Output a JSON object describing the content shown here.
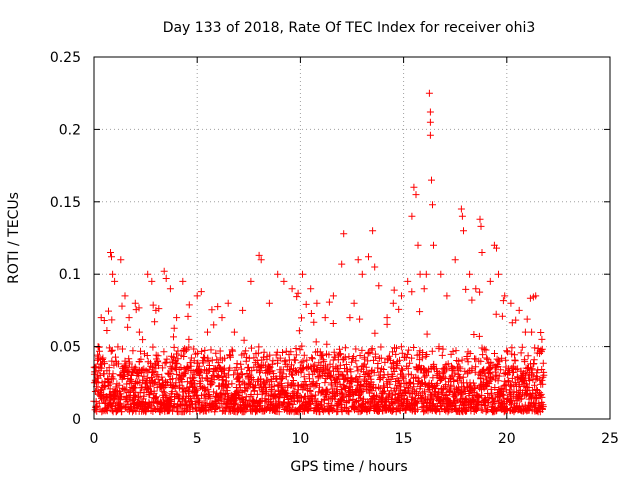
{
  "chart_data": {
    "type": "scatter",
    "title": "Day 133 of 2018, Rate Of TEC Index for receiver ohi3",
    "xlabel": "GPS time / hours",
    "ylabel": "ROTI / TECUs",
    "xlim": [
      0,
      25
    ],
    "ylim": [
      0,
      0.25
    ],
    "x_ticks": [
      0,
      5,
      10,
      15,
      20,
      25
    ],
    "x_tick_labels": [
      "0",
      "5",
      "10",
      "15",
      "20",
      "25"
    ],
    "y_ticks": [
      0,
      0.05,
      0.1,
      0.15,
      0.2,
      0.25
    ],
    "y_tick_labels": [
      "0",
      "0.05",
      "0.1",
      "0.15",
      "0.2",
      "0.25"
    ],
    "grid": true,
    "marker": "+",
    "series": [
      {
        "name": "ROTI",
        "color": "#ff0000",
        "points": [
          [
            0.1,
            0.012
          ],
          [
            0.2,
            0.05
          ],
          [
            0.35,
            0.07
          ],
          [
            0.5,
            0.068
          ],
          [
            0.8,
            0.115
          ],
          [
            0.85,
            0.112
          ],
          [
            0.9,
            0.1
          ],
          [
            1.0,
            0.095
          ],
          [
            1.3,
            0.11
          ],
          [
            1.5,
            0.085
          ],
          [
            1.7,
            0.07
          ],
          [
            2.0,
            0.08
          ],
          [
            2.2,
            0.06
          ],
          [
            2.6,
            0.1
          ],
          [
            2.8,
            0.095
          ],
          [
            3.0,
            0.075
          ],
          [
            3.4,
            0.102
          ],
          [
            3.5,
            0.097
          ],
          [
            3.7,
            0.09
          ],
          [
            4.0,
            0.07
          ],
          [
            4.3,
            0.095
          ],
          [
            4.6,
            0.055
          ],
          [
            5.0,
            0.085
          ],
          [
            5.2,
            0.088
          ],
          [
            5.5,
            0.06
          ],
          [
            5.8,
            0.065
          ],
          [
            6.2,
            0.07
          ],
          [
            6.5,
            0.08
          ],
          [
            6.8,
            0.06
          ],
          [
            7.2,
            0.075
          ],
          [
            7.6,
            0.095
          ],
          [
            8.0,
            0.113
          ],
          [
            8.1,
            0.11
          ],
          [
            8.5,
            0.08
          ],
          [
            8.9,
            0.1
          ],
          [
            9.2,
            0.095
          ],
          [
            9.6,
            0.09
          ],
          [
            10.1,
            0.1
          ],
          [
            10.5,
            0.09
          ],
          [
            10.8,
            0.08
          ],
          [
            11.2,
            0.07
          ],
          [
            11.6,
            0.085
          ],
          [
            12.0,
            0.107
          ],
          [
            12.1,
            0.128
          ],
          [
            12.4,
            0.07
          ],
          [
            12.6,
            0.08
          ],
          [
            12.8,
            0.11
          ],
          [
            13.0,
            0.1
          ],
          [
            13.3,
            0.112
          ],
          [
            13.5,
            0.13
          ],
          [
            13.6,
            0.105
          ],
          [
            13.8,
            0.092
          ],
          [
            14.2,
            0.07
          ],
          [
            14.5,
            0.08
          ],
          [
            14.9,
            0.085
          ],
          [
            15.2,
            0.095
          ],
          [
            15.4,
            0.14
          ],
          [
            15.5,
            0.16
          ],
          [
            15.6,
            0.155
          ],
          [
            15.7,
            0.12
          ],
          [
            15.8,
            0.1
          ],
          [
            16.0,
            0.09
          ],
          [
            16.1,
            0.1
          ],
          [
            16.25,
            0.225
          ],
          [
            16.3,
            0.212
          ],
          [
            16.3,
            0.205
          ],
          [
            16.3,
            0.196
          ],
          [
            16.35,
            0.165
          ],
          [
            16.4,
            0.148
          ],
          [
            16.45,
            0.12
          ],
          [
            16.8,
            0.1
          ],
          [
            17.1,
            0.085
          ],
          [
            17.5,
            0.11
          ],
          [
            17.8,
            0.145
          ],
          [
            17.85,
            0.14
          ],
          [
            17.9,
            0.13
          ],
          [
            18.2,
            0.1
          ],
          [
            18.5,
            0.09
          ],
          [
            18.7,
            0.138
          ],
          [
            18.75,
            0.133
          ],
          [
            18.8,
            0.115
          ],
          [
            19.2,
            0.095
          ],
          [
            19.4,
            0.12
          ],
          [
            19.5,
            0.118
          ],
          [
            19.6,
            0.1
          ],
          [
            19.9,
            0.085
          ],
          [
            20.2,
            0.08
          ],
          [
            20.6,
            0.075
          ],
          [
            20.9,
            0.06
          ],
          [
            21.2,
            0.06
          ],
          [
            21.4,
            0.085
          ],
          [
            21.7,
            0.055
          ]
        ]
      }
    ],
    "dense_band": {
      "x_range": [
        0,
        21.8
      ],
      "y_floor": 0.005,
      "y_typical_top": 0.05,
      "y_spike_top": 0.09
    }
  }
}
